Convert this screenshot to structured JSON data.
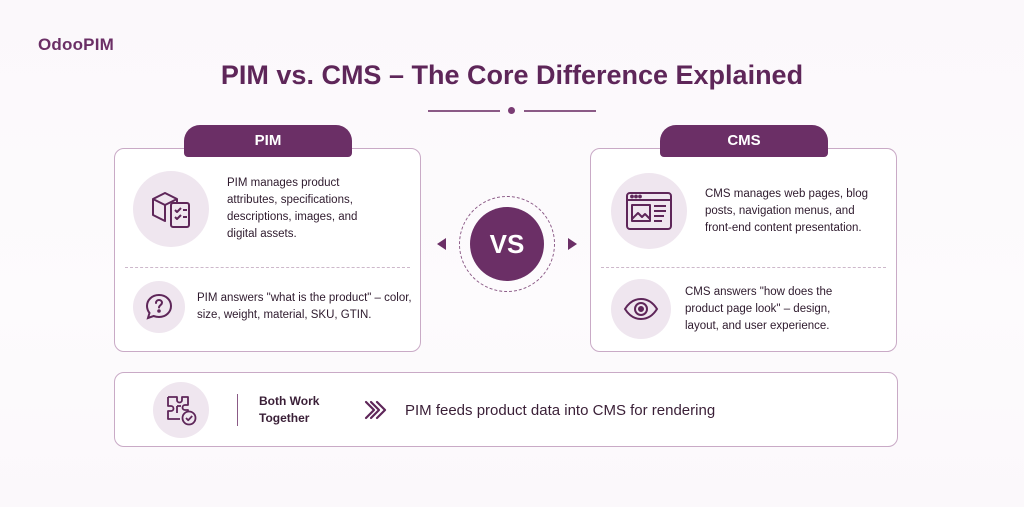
{
  "brand": {
    "logo_text": "OdooPIM"
  },
  "title": "PIM vs. CMS – The Core Difference Explained",
  "vs_label": "VS",
  "pim": {
    "tab_label": "PIM",
    "description": "PIM manages product attributes, specifications, descriptions, images, and digital assets.",
    "answer": "PIM answers \"what is the product\" – color, size, weight, material, SKU, GTIN."
  },
  "cms": {
    "tab_label": "CMS",
    "description": "CMS manages web pages, blog posts, navigation menus, and front-end content presentation.",
    "answer": "CMS answers \"how does the product page look\" – design, layout, and user experience."
  },
  "bottom": {
    "heading": "Both Work Together",
    "message": "PIM feeds product data into CMS for rendering"
  },
  "colors": {
    "accent": "#6b2f66",
    "light": "#efe6ef",
    "border": "#c9aac6"
  },
  "icons": {
    "pim_description": "product-box-checklist-icon",
    "pim_answer": "question-bubble-icon",
    "cms_description": "web-page-layout-icon",
    "cms_answer": "eye-icon",
    "bottom": "puzzle-check-icon",
    "bottom_arrow": "double-chevron-right-icon"
  }
}
